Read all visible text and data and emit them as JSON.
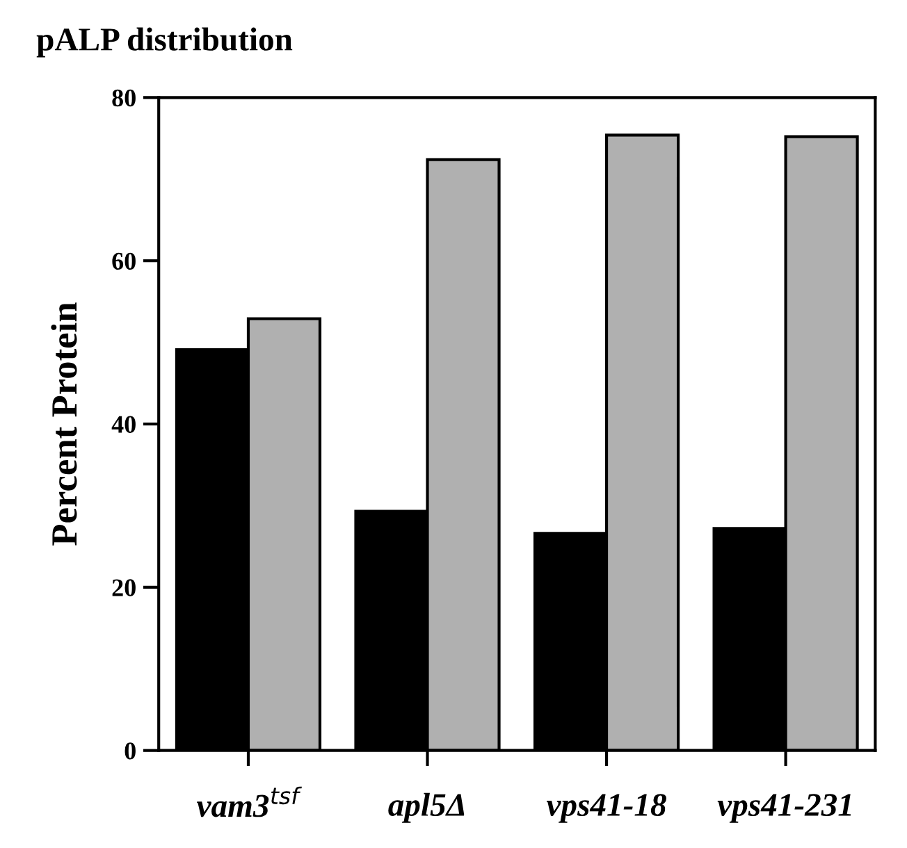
{
  "chart_data": {
    "type": "bar",
    "title": "pALP distribution",
    "ylabel": "Percent Protein",
    "categories": [
      "vam3$^{tsf}$",
      "apl5Δ",
      "vps41-18",
      "vps41-231"
    ],
    "series": [
      {
        "color": "#000000",
        "values": [
          49.1,
          29.3,
          26.6,
          27.2
        ]
      },
      {
        "color": "#b0b0b0",
        "values": [
          52.9,
          72.4,
          75.4,
          75.2
        ]
      }
    ],
    "ylim": [
      0,
      80
    ],
    "yticks": [
      0,
      20,
      40,
      60,
      80
    ],
    "grid": false,
    "legend": false
  }
}
